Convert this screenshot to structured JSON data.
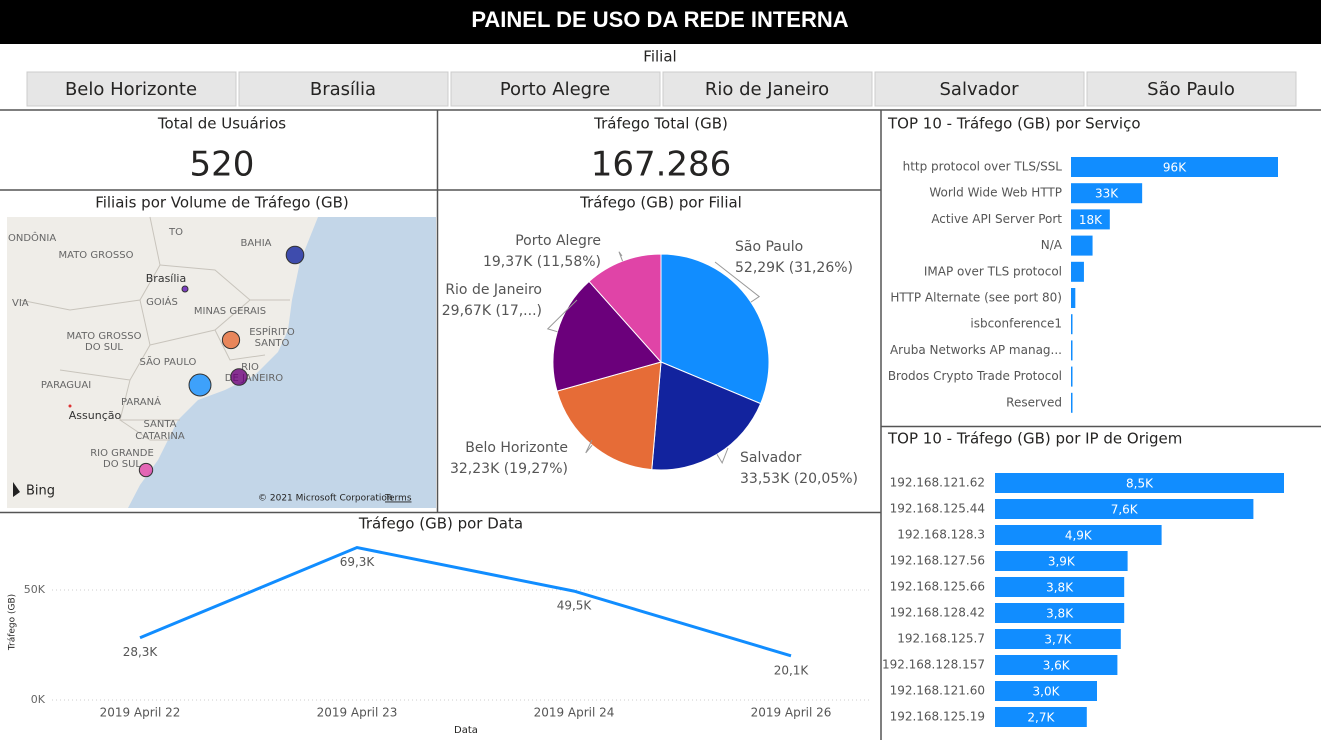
{
  "header": {
    "title": "PAINEL DE USO DA REDE INTERNA"
  },
  "slicer": {
    "title": "Filial",
    "options": [
      "Belo Horizonte",
      "Brasília",
      "Porto Alegre",
      "Rio de Janeiro",
      "Salvador",
      "São Paulo"
    ]
  },
  "cards": [
    {
      "title": "Total de Usuários",
      "value": 520
    },
    {
      "title": "Tráfego Total (GB)",
      "value": 167286,
      "value_label": "167.286"
    }
  ],
  "map": {
    "title": "Filiais por Volume de Tráfego (GB)",
    "labels": [
      "ONDÔNIA",
      "MATO GROSSO",
      "TO",
      "BAHIA",
      "Brasília",
      "GOIÁS",
      "MINAS GERAIS",
      "ESPÍRITO",
      "SANTO",
      "VIA",
      "MATO GROSSO",
      "DO SUL",
      "SÃO PAULO",
      "RIO",
      "DE JANEIRO",
      "PARAGUAI",
      "PARANÁ",
      "Assunção",
      "SANTA",
      "CATARINA",
      "RIO GRANDE",
      "DO SUL"
    ],
    "brand": "Bing",
    "copyright": "© 2021 Microsoft Corporation",
    "terms": "Terms"
  },
  "chart_data": [
    {
      "type": "pie",
      "title": "Tráfego (GB) por Filial",
      "categories": [
        "São Paulo",
        "Salvador",
        "Belo Horizonte",
        "Rio de Janeiro",
        "Porto Alegre"
      ],
      "values": [
        52290,
        33530,
        32230,
        29670,
        19370
      ],
      "value_labels": [
        "52,29K (31,26%)",
        "33,53K (20,05%)",
        "32,23K (19,27%)",
        "29,67K (17,...)",
        "19,37K (11,58%)"
      ],
      "colors": [
        "#118DFF",
        "#12239E",
        "#E66C37",
        "#6B007B",
        "#E044A7"
      ]
    },
    {
      "type": "hbar",
      "title": "TOP 10 - Tráfego (GB) por Serviço",
      "categories": [
        "http protocol over TLS/SSL",
        "World Wide Web HTTP",
        "Active API Server Port",
        "N/A",
        "IMAP over TLS protocol",
        "HTTP Alternate (see port 80)",
        "isbconference1",
        "Aruba Networks AP manag...",
        "Brodos Crypto Trade Protocol",
        "Reserved"
      ],
      "values": [
        96000,
        33000,
        18000,
        10000,
        6000,
        2000,
        500,
        400,
        300,
        200
      ],
      "value_labels": [
        "96K",
        "33K",
        "18K",
        null,
        null,
        null,
        null,
        null,
        null,
        null
      ],
      "color": "#118DFF",
      "xlim": [
        0,
        96000
      ]
    },
    {
      "type": "hbar",
      "title": "TOP 10 - Tráfego (GB) por IP de Origem",
      "categories": [
        "192.168.121.62",
        "192.168.125.44",
        "192.168.128.3",
        "192.168.127.56",
        "192.168.125.66",
        "192.168.128.42",
        "192.168.125.7",
        "192.168.128.157",
        "192.168.121.60",
        "192.168.125.19"
      ],
      "values": [
        8500,
        7600,
        4900,
        3900,
        3800,
        3800,
        3700,
        3600,
        3000,
        2700
      ],
      "value_labels": [
        "8,5K",
        "7,6K",
        "4,9K",
        "3,9K",
        "3,8K",
        "3,8K",
        "3,7K",
        "3,6K",
        "3,0K",
        "2,7K"
      ],
      "color": "#118DFF",
      "xlim": [
        0,
        8500
      ]
    },
    {
      "type": "line",
      "title": "Tráfego (GB) por Data",
      "x_label": "Data",
      "y_label": "Tráfego (GB)",
      "categories": [
        "2019 April 22",
        "2019 April 23",
        "2019 April 24",
        "2019 April 26"
      ],
      "values": [
        28300,
        69300,
        49500,
        20100
      ],
      "value_labels": [
        "28,3K",
        "69,3K",
        "49,5K",
        "20,1K"
      ],
      "color": "#118DFF",
      "ylim": [
        0,
        75000
      ],
      "yticks": [
        {
          "value": 0,
          "label": "0K"
        },
        {
          "value": 50000,
          "label": "50K"
        }
      ],
      "grid": true
    }
  ]
}
